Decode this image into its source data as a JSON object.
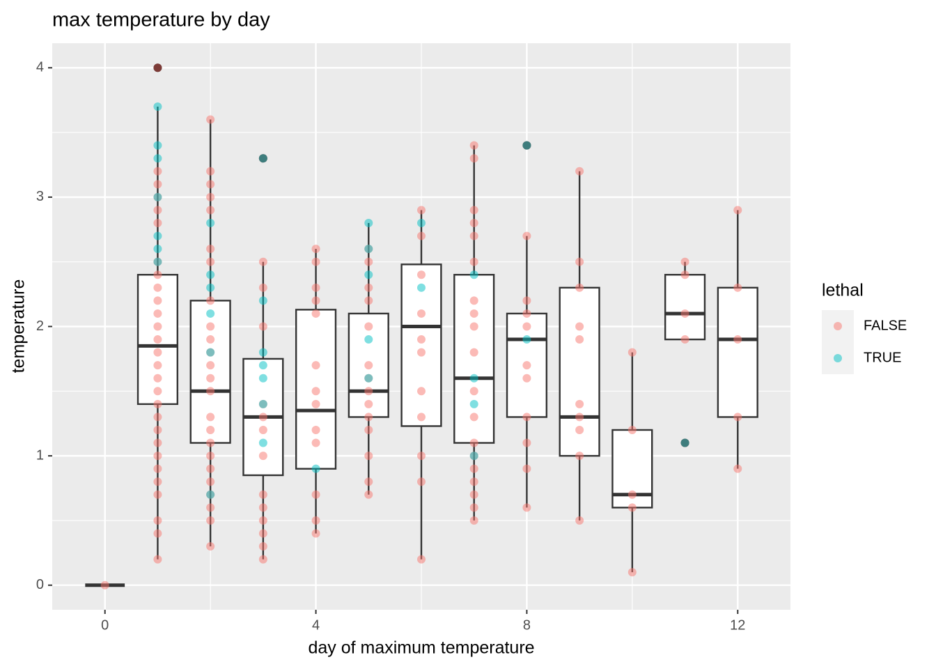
{
  "chart_data": {
    "type": "box",
    "title": "max temperature by day",
    "x_label": "day of maximum temperature",
    "y_label": "temperature",
    "legend_title": "lethal",
    "legend": "right",
    "grid": true,
    "xlim": [
      -1,
      13
    ],
    "xticks": [
      0,
      4,
      8,
      12
    ],
    "xminor": [
      2,
      6,
      10
    ],
    "ylim": [
      -0.19,
      4.19
    ],
    "yticks": [
      0,
      1,
      2,
      3,
      4
    ],
    "yminor": [
      0.5,
      1.5,
      2.5,
      3.5
    ],
    "boxes": [
      {
        "x": 0,
        "whislo": 0,
        "q1": 0,
        "med": 0,
        "q3": 0,
        "whishi": 0,
        "outliers": []
      },
      {
        "x": 1,
        "whislo": 0.2,
        "q1": 1.4,
        "med": 1.85,
        "q3": 2.4,
        "whishi": 3.7,
        "outliers": [
          4.0
        ]
      },
      {
        "x": 2,
        "whislo": 0.3,
        "q1": 1.1,
        "med": 1.5,
        "q3": 2.2,
        "whishi": 3.6,
        "outliers": []
      },
      {
        "x": 3,
        "whislo": 0.2,
        "q1": 0.85,
        "med": 1.3,
        "q3": 1.75,
        "whishi": 2.5,
        "outliers": [
          3.3
        ]
      },
      {
        "x": 4,
        "whislo": 0.4,
        "q1": 0.9,
        "med": 1.35,
        "q3": 2.13,
        "whishi": 2.6,
        "outliers": []
      },
      {
        "x": 5,
        "whislo": 0.7,
        "q1": 1.3,
        "med": 1.5,
        "q3": 2.1,
        "whishi": 2.8,
        "outliers": []
      },
      {
        "x": 6,
        "whislo": 0.2,
        "q1": 1.23,
        "med": 2.0,
        "q3": 2.48,
        "whishi": 2.9,
        "outliers": []
      },
      {
        "x": 7,
        "whislo": 0.5,
        "q1": 1.1,
        "med": 1.6,
        "q3": 2.4,
        "whishi": 3.4,
        "outliers": []
      },
      {
        "x": 8,
        "whislo": 0.6,
        "q1": 1.3,
        "med": 1.9,
        "q3": 2.1,
        "whishi": 2.7,
        "outliers": [
          3.4
        ]
      },
      {
        "x": 9,
        "whislo": 0.5,
        "q1": 1.0,
        "med": 1.3,
        "q3": 2.3,
        "whishi": 3.2,
        "outliers": []
      },
      {
        "x": 10,
        "whislo": 0.1,
        "q1": 0.6,
        "med": 0.7,
        "q3": 1.2,
        "whishi": 1.8,
        "outliers": []
      },
      {
        "x": 11,
        "whislo": 1.9,
        "q1": 1.9,
        "med": 2.1,
        "q3": 2.4,
        "whishi": 2.5,
        "outliers": [
          1.1
        ]
      },
      {
        "x": 12,
        "whislo": 0.9,
        "q1": 1.3,
        "med": 1.9,
        "q3": 2.3,
        "whishi": 2.9,
        "outliers": []
      }
    ],
    "series": [
      {
        "name": "FALSE",
        "color": "#F8766D",
        "x": [
          0,
          1,
          1,
          1,
          1,
          1,
          1,
          1,
          1,
          1,
          1,
          1,
          1,
          1,
          1,
          1,
          1,
          1,
          1,
          1,
          1,
          1,
          1,
          1,
          1,
          1,
          1,
          1,
          1,
          2,
          2,
          2,
          2,
          2,
          2,
          2,
          2,
          2,
          2,
          2,
          2,
          2,
          2,
          2,
          2,
          2,
          2,
          2,
          2,
          2,
          2,
          2,
          2,
          3,
          3,
          3,
          3,
          3,
          3,
          3,
          3,
          3,
          3,
          3,
          3,
          3,
          3,
          4,
          4,
          4,
          4,
          4,
          4,
          4,
          4,
          4,
          4,
          4,
          4,
          4,
          5,
          5,
          5,
          5,
          5,
          5,
          5,
          5,
          5,
          5,
          5,
          5,
          5,
          5,
          6,
          6,
          6,
          6,
          6,
          6,
          6,
          6,
          6,
          6,
          6,
          7,
          7,
          7,
          7,
          7,
          7,
          7,
          7,
          7,
          7,
          7,
          7,
          7,
          7,
          7,
          7,
          7,
          7,
          7,
          8,
          8,
          8,
          8,
          8,
          8,
          8,
          8,
          8,
          8,
          8,
          9,
          9,
          9,
          9,
          9,
          9,
          9,
          9,
          9,
          9,
          10,
          10,
          10,
          10,
          10,
          11,
          11,
          11,
          11,
          11,
          12,
          12,
          12,
          12,
          12
        ],
        "values": [
          0,
          0.2,
          0.4,
          0.5,
          0.7,
          0.8,
          0.9,
          1.0,
          1.1,
          1.2,
          1.3,
          1.4,
          1.5,
          1.6,
          1.7,
          1.8,
          1.9,
          2.0,
          2.1,
          2.2,
          2.3,
          2.4,
          2.5,
          2.8,
          2.9,
          3.0,
          3.1,
          3.2,
          4.0,
          0.3,
          0.5,
          0.6,
          0.7,
          0.8,
          0.9,
          1.0,
          1.1,
          1.2,
          1.3,
          1.5,
          1.6,
          1.7,
          1.8,
          1.9,
          2.0,
          2.2,
          2.5,
          2.6,
          2.9,
          3.0,
          3.1,
          3.2,
          3.6,
          0.2,
          0.3,
          0.4,
          0.5,
          0.6,
          0.7,
          1.0,
          1.2,
          1.3,
          1.4,
          2.0,
          2.3,
          2.5,
          3.3,
          0.4,
          0.5,
          0.7,
          1.1,
          1.2,
          1.4,
          1.5,
          1.7,
          2.1,
          2.2,
          2.3,
          2.5,
          2.6,
          0.7,
          0.8,
          1.0,
          1.2,
          1.3,
          1.4,
          1.5,
          1.6,
          1.7,
          2.0,
          2.2,
          2.3,
          2.5,
          2.6,
          0.2,
          0.8,
          1.0,
          1.3,
          1.5,
          1.8,
          1.9,
          2.1,
          2.4,
          2.7,
          2.9,
          0.5,
          0.6,
          0.7,
          0.8,
          0.9,
          1.0,
          1.1,
          1.3,
          1.5,
          1.8,
          2.0,
          2.1,
          2.2,
          2.5,
          2.7,
          2.8,
          2.9,
          3.3,
          3.4,
          0.6,
          0.9,
          1.1,
          1.3,
          1.6,
          1.7,
          2.0,
          2.1,
          2.2,
          2.7,
          3.4,
          0.5,
          1.0,
          1.2,
          1.3,
          1.4,
          1.9,
          2.0,
          2.3,
          2.5,
          3.2,
          0.1,
          0.6,
          0.7,
          1.2,
          1.8,
          1.1,
          1.9,
          2.1,
          2.4,
          2.5,
          0.9,
          1.3,
          1.9,
          2.3,
          2.9
        ]
      },
      {
        "name": "TRUE",
        "color": "#00BFC4",
        "x": [
          1,
          1,
          1,
          1,
          1,
          1,
          1,
          2,
          2,
          2,
          2,
          2,
          2,
          3,
          3,
          3,
          3,
          3,
          3,
          3,
          4,
          5,
          5,
          5,
          5,
          5,
          6,
          6,
          7,
          7,
          7,
          7,
          8,
          8,
          11
        ],
        "values": [
          2.5,
          2.6,
          2.7,
          3.0,
          3.3,
          3.4,
          3.7,
          0.7,
          1.8,
          2.1,
          2.3,
          2.4,
          2.8,
          1.1,
          1.4,
          1.6,
          1.7,
          1.8,
          2.2,
          3.3,
          0.9,
          1.6,
          1.9,
          2.4,
          2.6,
          2.8,
          2.3,
          2.8,
          1.0,
          1.4,
          1.6,
          2.4,
          1.9,
          3.4,
          1.1
        ]
      }
    ]
  }
}
